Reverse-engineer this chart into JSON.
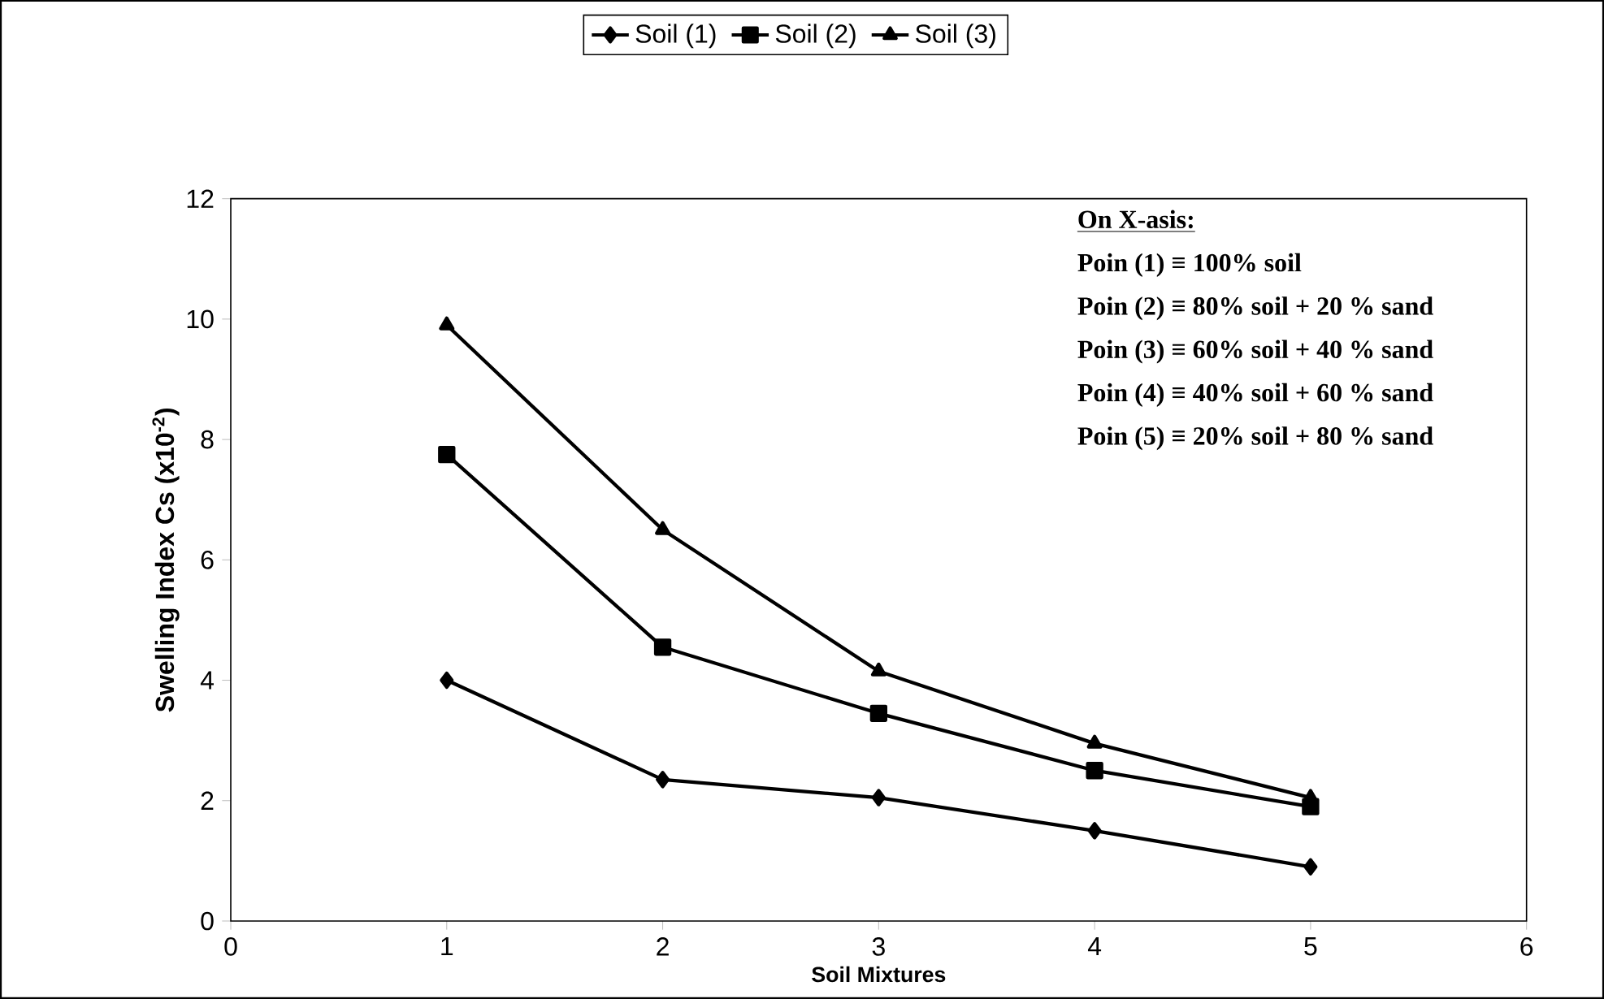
{
  "chart_data": {
    "type": "line",
    "xlabel": "Soil Mixtures",
    "ylabel": "Swelling Index Cs (x10$^{-2}$)",
    "x": [
      1,
      2,
      3,
      4,
      5
    ],
    "series": [
      {
        "name": "Soil (1)",
        "color": "#000000",
        "marker": "diamond",
        "values": [
          4.0,
          2.35,
          2.05,
          1.5,
          0.9
        ]
      },
      {
        "name": "Soil (2)",
        "color": "#000000",
        "marker": "square",
        "values": [
          7.75,
          4.55,
          3.45,
          2.5,
          1.9
        ]
      },
      {
        "name": "Soil (3)",
        "color": "#000000",
        "marker": "triangle",
        "values": [
          9.9,
          6.5,
          4.15,
          2.95,
          2.05
        ]
      }
    ],
    "xlim": [
      0,
      6
    ],
    "ylim": [
      0,
      12
    ],
    "xticks": [
      0,
      1,
      2,
      3,
      4,
      5,
      6
    ],
    "yticks": [
      0,
      2,
      4,
      6,
      8,
      10,
      12
    ],
    "legend": "top",
    "line_style": "solid",
    "annotations": [
      "On X-asis:",
      "Poin (1) ≡ 100%  soil",
      "Poin (2) ≡ 80%  soil + 20 %  sand",
      "Poin (3) ≡ 60%  soil + 40 %  sand",
      "Poin (4) ≡ 40%  soil + 60 %  sand",
      "Poin (5) ≡ 20%  soil + 80 %  sand"
    ]
  }
}
